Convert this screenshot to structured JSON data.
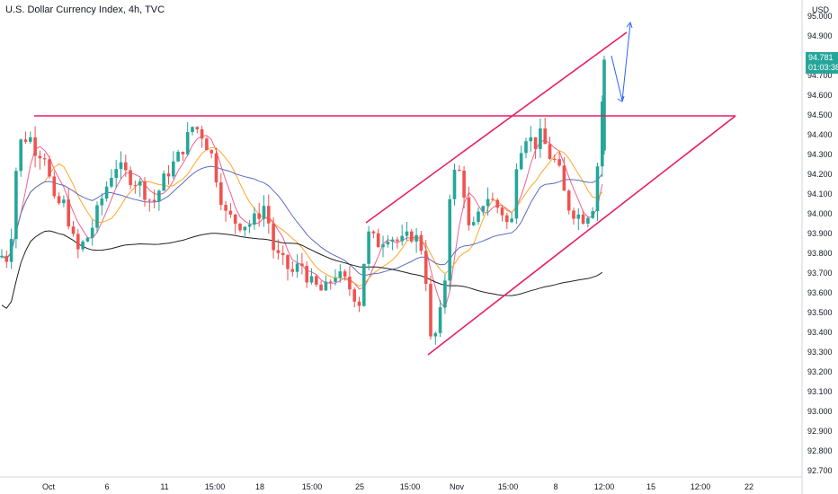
{
  "header": {
    "title": "U.S. Dollar Currency Index, 4h, TVC",
    "currency": "USD"
  },
  "price_tag": {
    "price": "94.781",
    "countdown": "01:03:38",
    "color": "#26a69a"
  },
  "colors": {
    "up": "#26a69a",
    "down": "#ef5350",
    "lines": "#e91e63",
    "arrow": "#2962ff"
  },
  "chart_data": {
    "type": "candlestick",
    "title": "U.S. Dollar Currency Index, 4h, TVC",
    "ylabel": "USD",
    "ylim": [
      92.7,
      95.0
    ],
    "y_ticks": [
      "95.000",
      "94.900",
      "94.800",
      "94.700",
      "94.600",
      "94.500",
      "94.400",
      "94.300",
      "94.200",
      "94.100",
      "94.000",
      "93.900",
      "93.800",
      "93.700",
      "93.600",
      "93.500",
      "93.400",
      "93.300",
      "93.200",
      "93.100",
      "93.000",
      "92.900",
      "92.800",
      "92.700"
    ],
    "x_ticks": [
      "Oct",
      "6",
      "11",
      "15:00",
      "18",
      "15:00",
      "25",
      "15:00",
      "Nov",
      "15:00",
      "8",
      "12:00",
      "15",
      "12:00",
      "22"
    ],
    "last_price": 94.781
  }
}
